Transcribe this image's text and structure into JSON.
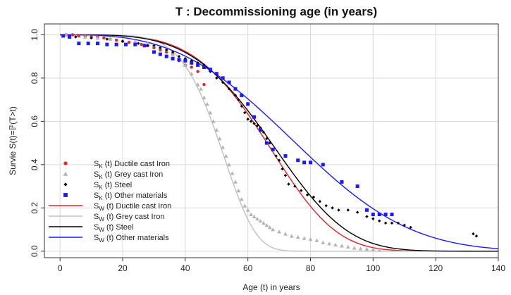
{
  "chart_data": {
    "type": "scatter",
    "title": "T : Decommissioning age (in years)",
    "xlabel": "Age (t) in years",
    "ylabel": "Survie S(t)=ℙ(T>t)",
    "xlim": [
      -5,
      140
    ],
    "ylim": [
      -0.03,
      1.05
    ],
    "xticks": [
      0,
      20,
      40,
      60,
      80,
      100,
      120,
      140
    ],
    "yticks": [
      0.0,
      0.2,
      0.4,
      0.6,
      0.8,
      1.0
    ],
    "xtick_labels": [
      "0",
      "20",
      "40",
      "60",
      "80",
      "100",
      "120",
      "140"
    ],
    "ytick_labels": [
      "0.0",
      "0.2",
      "0.4",
      "0.6",
      "0.8",
      "1.0"
    ],
    "grid": true,
    "legend_position": "bottom-left",
    "series": [
      {
        "name": "S_K (t) Ductile cast Iron",
        "kind": "points",
        "marker": "circle",
        "color": "#e8202a",
        "points": [
          [
            2,
            1.0
          ],
          [
            4,
            1.0
          ],
          [
            6,
            0.995
          ],
          [
            8,
            0.995
          ],
          [
            10,
            0.99
          ],
          [
            12,
            0.99
          ],
          [
            14,
            0.985
          ],
          [
            16,
            0.98
          ],
          [
            18,
            0.975
          ],
          [
            20,
            0.97
          ],
          [
            22,
            0.965
          ],
          [
            24,
            0.96
          ],
          [
            26,
            0.955
          ],
          [
            28,
            0.95
          ],
          [
            30,
            0.94
          ],
          [
            32,
            0.93
          ],
          [
            34,
            0.92
          ],
          [
            36,
            0.91
          ],
          [
            38,
            0.88
          ],
          [
            40,
            0.86
          ],
          [
            42,
            0.85
          ],
          [
            44,
            0.83
          ],
          [
            46,
            0.77
          ]
        ]
      },
      {
        "name": "S_K (t) Grey cast Iron",
        "kind": "points",
        "marker": "triangle",
        "color": "#b4b4b4",
        "points": [
          [
            2,
            1.0
          ],
          [
            5,
            0.995
          ],
          [
            8,
            0.99
          ],
          [
            12,
            0.985
          ],
          [
            16,
            0.98
          ],
          [
            20,
            0.975
          ],
          [
            24,
            0.97
          ],
          [
            28,
            0.96
          ],
          [
            30,
            0.95
          ],
          [
            32,
            0.94
          ],
          [
            34,
            0.93
          ],
          [
            36,
            0.91
          ],
          [
            38,
            0.89
          ],
          [
            40,
            0.86
          ],
          [
            42,
            0.82
          ],
          [
            44,
            0.77
          ],
          [
            45,
            0.75
          ],
          [
            46,
            0.71
          ],
          [
            47,
            0.68
          ],
          [
            48,
            0.64
          ],
          [
            49,
            0.6
          ],
          [
            50,
            0.56
          ],
          [
            51,
            0.52
          ],
          [
            52,
            0.48
          ],
          [
            53,
            0.44
          ],
          [
            54,
            0.4
          ],
          [
            55,
            0.36
          ],
          [
            56,
            0.32
          ],
          [
            57,
            0.28
          ],
          [
            58,
            0.24
          ],
          [
            59,
            0.21
          ],
          [
            60,
            0.19
          ],
          [
            61,
            0.17
          ],
          [
            62,
            0.16
          ],
          [
            63,
            0.15
          ],
          [
            64,
            0.14
          ],
          [
            65,
            0.13
          ],
          [
            66,
            0.12
          ],
          [
            67,
            0.11
          ],
          [
            68,
            0.1
          ],
          [
            70,
            0.09
          ],
          [
            72,
            0.08
          ],
          [
            74,
            0.07
          ],
          [
            76,
            0.065
          ],
          [
            78,
            0.06
          ],
          [
            80,
            0.055
          ],
          [
            82,
            0.05
          ],
          [
            84,
            0.04
          ],
          [
            86,
            0.035
          ],
          [
            88,
            0.03
          ],
          [
            90,
            0.025
          ],
          [
            92,
            0.02
          ],
          [
            94,
            0.015
          ],
          [
            96,
            0.012
          ],
          [
            98,
            0.01
          ],
          [
            100,
            0.008
          ],
          [
            102,
            0.005
          ]
        ]
      },
      {
        "name": "S_K (t) Steel",
        "kind": "points",
        "marker": "diamond",
        "color": "#000000",
        "points": [
          [
            5,
            0.99
          ],
          [
            10,
            0.985
          ],
          [
            15,
            0.98
          ],
          [
            20,
            0.97
          ],
          [
            25,
            0.96
          ],
          [
            28,
            0.95
          ],
          [
            30,
            0.95
          ],
          [
            32,
            0.94
          ],
          [
            34,
            0.93
          ],
          [
            36,
            0.92
          ],
          [
            38,
            0.9
          ],
          [
            40,
            0.89
          ],
          [
            42,
            0.88
          ],
          [
            44,
            0.87
          ],
          [
            46,
            0.86
          ],
          [
            48,
            0.83
          ],
          [
            50,
            0.8
          ],
          [
            52,
            0.78
          ],
          [
            54,
            0.75
          ],
          [
            56,
            0.72
          ],
          [
            57,
            0.7
          ],
          [
            58,
            0.67
          ],
          [
            59,
            0.64
          ],
          [
            60,
            0.61
          ],
          [
            61,
            0.6
          ],
          [
            62,
            0.59
          ],
          [
            63,
            0.58
          ],
          [
            64,
            0.57
          ],
          [
            65,
            0.55
          ],
          [
            66,
            0.52
          ],
          [
            67,
            0.5
          ],
          [
            68,
            0.47
          ],
          [
            69,
            0.44
          ],
          [
            70,
            0.42
          ],
          [
            71,
            0.38
          ],
          [
            72,
            0.35
          ],
          [
            73,
            0.31
          ],
          [
            75,
            0.3
          ],
          [
            77,
            0.28
          ],
          [
            79,
            0.26
          ],
          [
            81,
            0.25
          ],
          [
            83,
            0.23
          ],
          [
            85,
            0.21
          ],
          [
            87,
            0.2
          ],
          [
            89,
            0.19
          ],
          [
            92,
            0.19
          ],
          [
            95,
            0.18
          ],
          [
            98,
            0.16
          ],
          [
            100,
            0.15
          ],
          [
            102,
            0.14
          ],
          [
            104,
            0.13
          ],
          [
            106,
            0.13
          ],
          [
            108,
            0.13
          ],
          [
            110,
            0.12
          ],
          [
            112,
            0.11
          ],
          [
            132,
            0.08
          ],
          [
            133,
            0.07
          ]
        ]
      },
      {
        "name": "S_K (t) Other materials",
        "kind": "points",
        "marker": "square",
        "color": "#1a1aff",
        "points": [
          [
            1,
            0.995
          ],
          [
            3,
            0.99
          ],
          [
            6,
            0.96
          ],
          [
            9,
            0.96
          ],
          [
            12,
            0.96
          ],
          [
            15,
            0.955
          ],
          [
            18,
            0.955
          ],
          [
            21,
            0.955
          ],
          [
            24,
            0.955
          ],
          [
            27,
            0.95
          ],
          [
            30,
            0.92
          ],
          [
            32,
            0.91
          ],
          [
            34,
            0.9
          ],
          [
            36,
            0.89
          ],
          [
            38,
            0.885
          ],
          [
            40,
            0.88
          ],
          [
            42,
            0.87
          ],
          [
            44,
            0.86
          ],
          [
            46,
            0.85
          ],
          [
            48,
            0.84
          ],
          [
            50,
            0.82
          ],
          [
            52,
            0.8
          ],
          [
            54,
            0.78
          ],
          [
            56,
            0.75
          ],
          [
            58,
            0.72
          ],
          [
            60,
            0.68
          ],
          [
            62,
            0.62
          ],
          [
            64,
            0.56
          ],
          [
            66,
            0.5
          ],
          [
            68,
            0.47
          ],
          [
            72,
            0.44
          ],
          [
            76,
            0.42
          ],
          [
            78,
            0.41
          ],
          [
            80,
            0.41
          ],
          [
            84,
            0.4
          ],
          [
            90,
            0.32
          ],
          [
            95,
            0.3
          ],
          [
            98,
            0.19
          ],
          [
            100,
            0.17
          ],
          [
            102,
            0.17
          ],
          [
            104,
            0.17
          ],
          [
            106,
            0.17
          ]
        ]
      },
      {
        "name": "S_W (t) Ductile cast Iron",
        "kind": "weibull",
        "color": "#e8202a",
        "scale": 72,
        "shape": 4.3
      },
      {
        "name": "S_W (t) Grey cast Iron",
        "kind": "weibull",
        "color": "#c0c0c0",
        "scale": 54,
        "shape": 6.2
      },
      {
        "name": "S_W (t) Steel",
        "kind": "weibull",
        "color": "#000000",
        "scale": 74,
        "shape": 4.0
      },
      {
        "name": "S_W (t) Other materials",
        "kind": "weibull",
        "color": "#1a1aff",
        "scale": 85,
        "shape": 3.0
      }
    ]
  }
}
